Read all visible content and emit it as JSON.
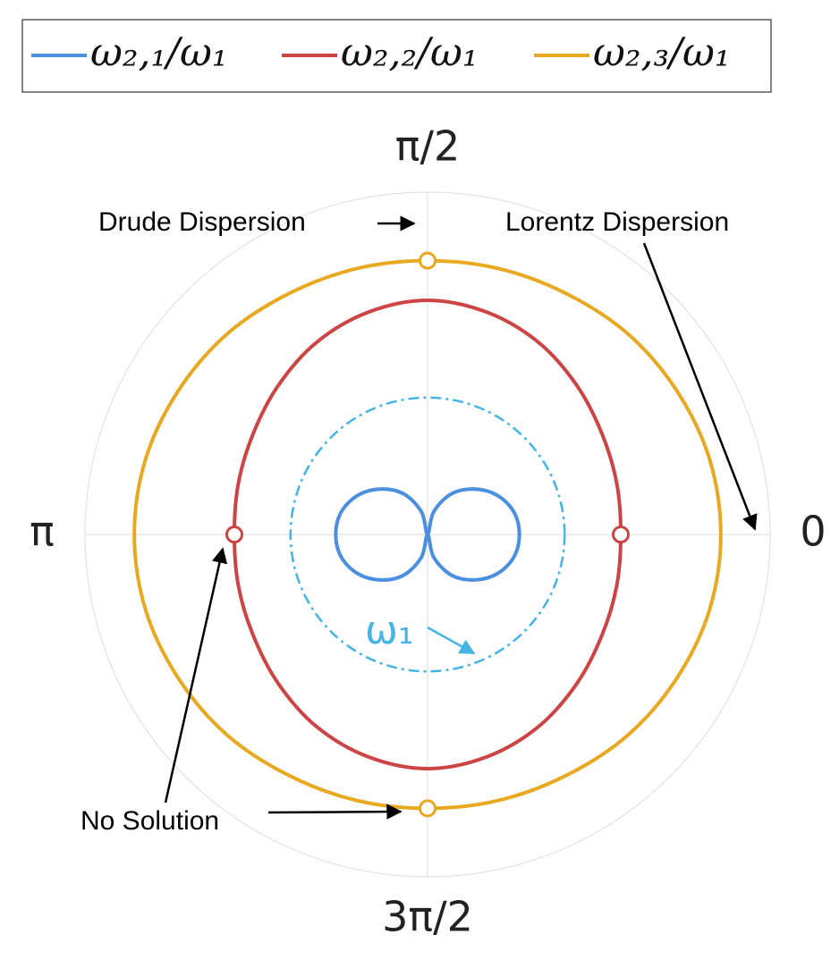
{
  "chart_data": {
    "type": "polar",
    "theta": [
      0,
      15,
      30,
      45,
      60,
      75,
      90,
      105,
      120,
      135,
      150,
      165,
      180,
      195,
      210,
      225,
      240,
      255,
      270,
      285,
      300,
      315,
      330,
      345,
      360
    ],
    "series": [
      {
        "name": "ω₂,₁/ω₁",
        "color": "#4a8fe0",
        "values": [
          0.67,
          0.65,
          0.58,
          0.47,
          0.34,
          0.17,
          0,
          0.17,
          0.34,
          0.47,
          0.58,
          0.65,
          0.67,
          0.65,
          0.58,
          0.47,
          0.34,
          0.17,
          0,
          0.17,
          0.34,
          0.47,
          0.58,
          0.65,
          0.67
        ]
      },
      {
        "name": "ω₂,₂/ω₁",
        "color": "#cc4444",
        "values": [
          1.41,
          1.43,
          1.47,
          1.54,
          1.62,
          1.68,
          1.71,
          1.68,
          1.62,
          1.54,
          1.47,
          1.43,
          1.41,
          1.43,
          1.47,
          1.54,
          1.62,
          1.68,
          1.71,
          1.68,
          1.62,
          1.54,
          1.47,
          1.43,
          1.41
        ],
        "markers": [
          {
            "theta": 0,
            "r": 1.41
          },
          {
            "theta": 180,
            "r": 1.41
          }
        ]
      },
      {
        "name": "ω₂,₃/ω₁",
        "color": "#e8a820",
        "values": [
          2.14,
          2.13,
          2.1,
          2.07,
          2.03,
          2.01,
          2.0,
          2.01,
          2.03,
          2.07,
          2.1,
          2.13,
          2.14,
          2.13,
          2.1,
          2.07,
          2.03,
          2.01,
          2.0,
          2.01,
          2.03,
          2.07,
          2.1,
          2.13,
          2.14
        ],
        "markers": [
          {
            "theta": 90,
            "r": 2.0
          },
          {
            "theta": 270,
            "r": 2.0
          }
        ]
      }
    ],
    "reference": {
      "label": "ω₁",
      "r": 1,
      "color": "#44b4e6"
    },
    "rlim": [
      0,
      2.5
    ],
    "thetaticks": [
      0,
      {
        "value": 90,
        "label": "π/2"
      },
      {
        "value": 180,
        "label": "π"
      },
      {
        "value": 270,
        "label": "3π/2"
      }
    ],
    "grid": true,
    "legend": "top",
    "annotations": [
      {
        "text": "Drude Dispersion"
      },
      {
        "text": "Lorentz Dispersion"
      },
      {
        "text": "No Solution"
      }
    ]
  }
}
